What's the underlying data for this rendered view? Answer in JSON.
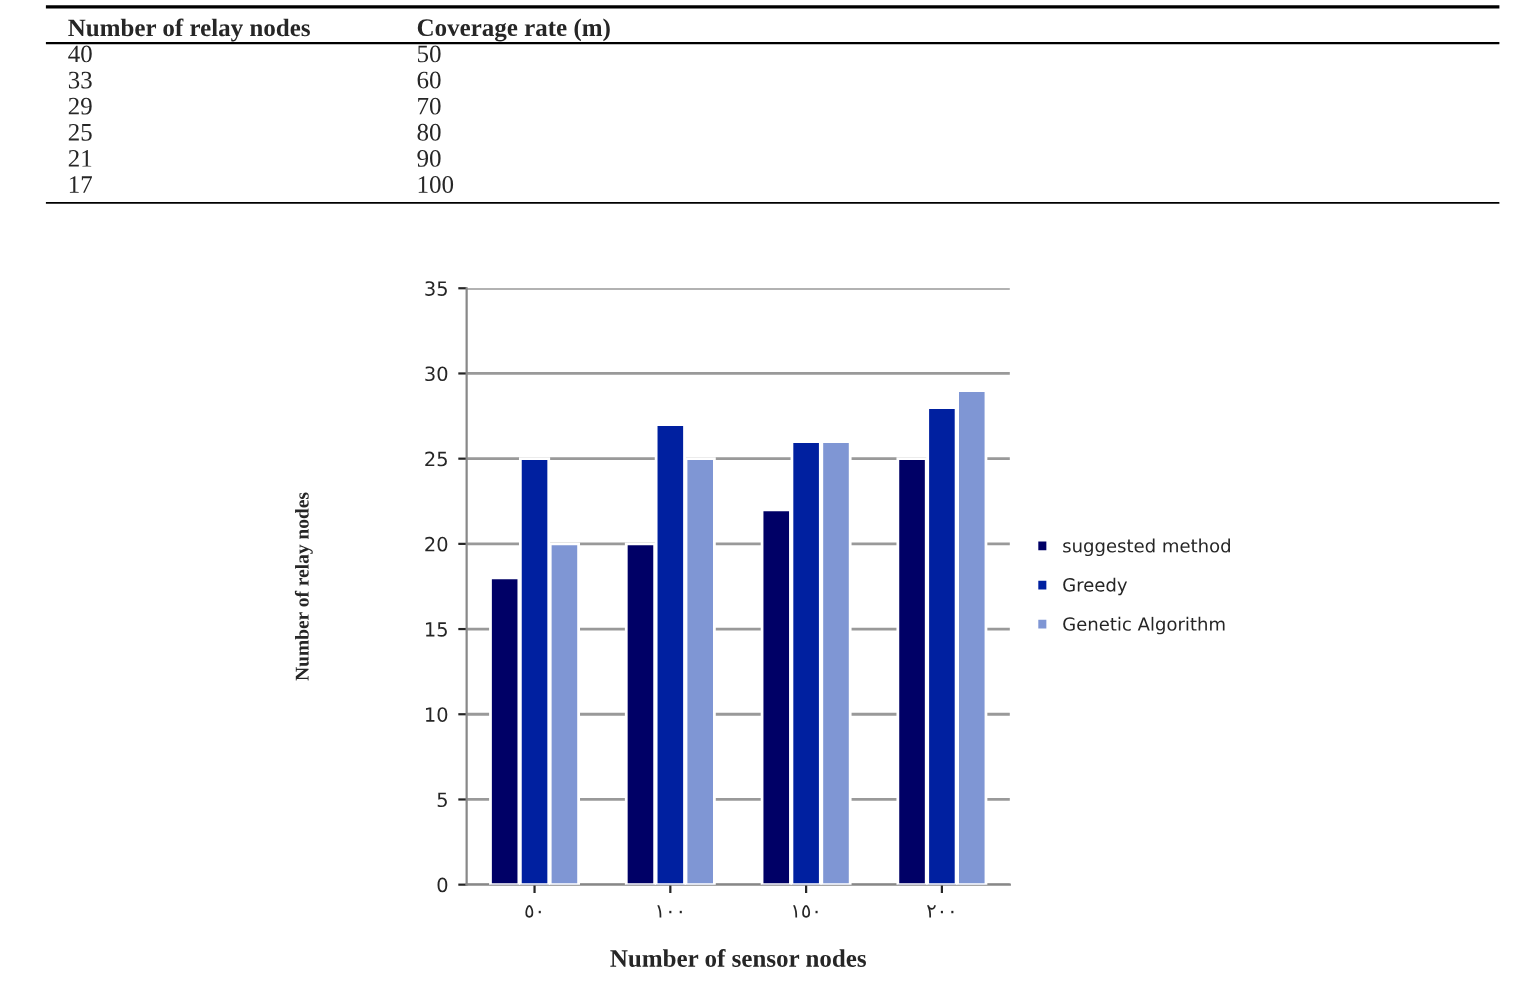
{
  "chart_data": [
    {
      "type": "other",
      "annotations": [
        "Number of relay nodes",
        "Coverage rate (m)",
        "40",
        "50",
        "33",
        "60",
        "29",
        "70",
        "25",
        "80",
        "21",
        "90",
        "17",
        "100"
      ]
    },
    {
      "type": "bar",
      "xlabel": "Number of sensor nodes",
      "ylabel": "Number of relay nodes",
      "categories": [
        "٥٠",
        "١٠٠",
        "١٥٠",
        "٢٠٠"
      ],
      "series": [
        {
          "name": "suggested method",
          "color": "#000066",
          "values": [
            18,
            20,
            22,
            25
          ]
        },
        {
          "name": "Greedy",
          "color": "#0020a0",
          "values": [
            25,
            27,
            26,
            28
          ]
        },
        {
          "name": "Genetic Algorithm",
          "color": "#7f96d4",
          "values": [
            20,
            25,
            26,
            29
          ]
        }
      ],
      "ylim": [
        0,
        35
      ],
      "yticks": [
        0,
        5,
        10,
        15,
        20,
        25,
        30,
        35
      ],
      "grid": "y",
      "legend": "right"
    }
  ]
}
